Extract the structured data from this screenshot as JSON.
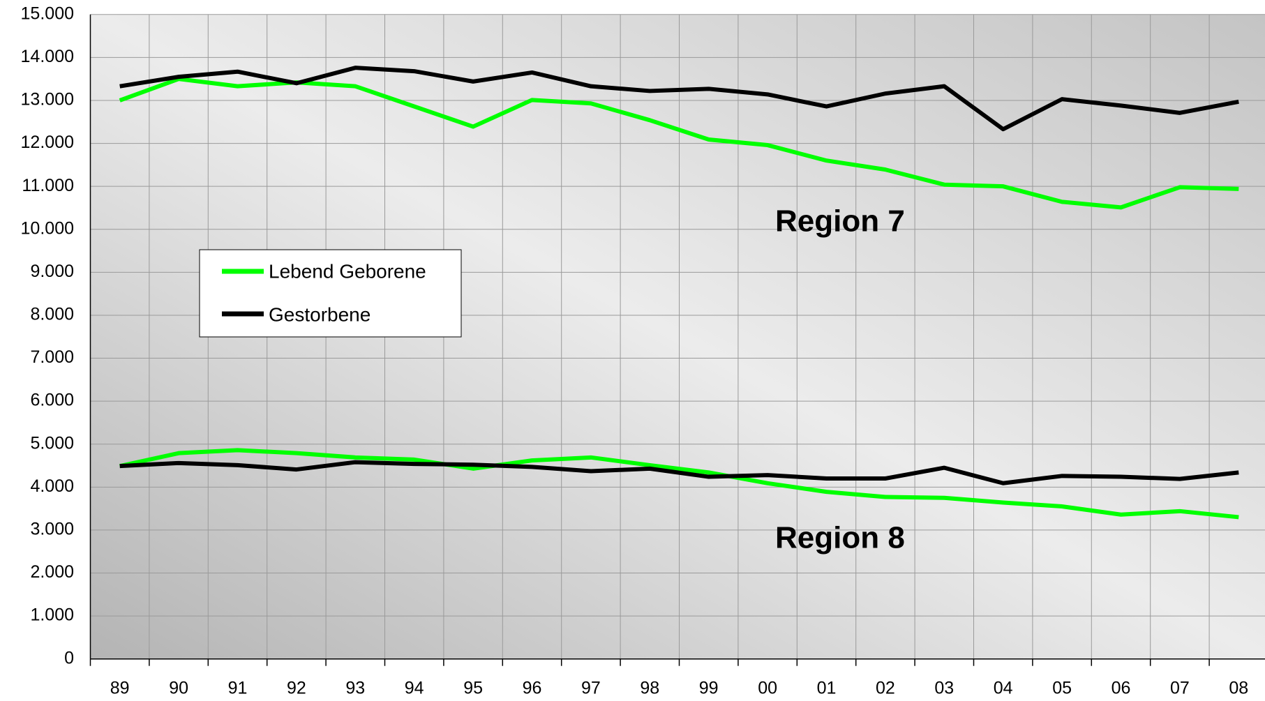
{
  "chart_data": {
    "type": "line",
    "categories": [
      "89",
      "90",
      "91",
      "92",
      "93",
      "94",
      "95",
      "96",
      "97",
      "98",
      "99",
      "00",
      "01",
      "02",
      "03",
      "04",
      "05",
      "06",
      "07",
      "08"
    ],
    "series": [
      {
        "name": "Lebend Geborene",
        "color": "#00ff00",
        "values": [
          13000,
          13500,
          13330,
          13420,
          13330,
          12860,
          12390,
          13010,
          12930,
          12540,
          12090,
          11960,
          11600,
          11390,
          11040,
          11000,
          10640,
          10510,
          10980,
          10940
        ]
      },
      {
        "name": "Gestorbene",
        "color": "#000000",
        "values": [
          13330,
          13550,
          13670,
          13400,
          13760,
          13680,
          13440,
          13650,
          13330,
          13220,
          13270,
          13140,
          12860,
          13160,
          13330,
          12330,
          13030,
          12880,
          12710,
          12970
        ]
      },
      {
        "name": "Lebend Geborene",
        "color": "#00ff00",
        "values": [
          4490,
          4790,
          4860,
          4790,
          4690,
          4640,
          4430,
          4620,
          4690,
          4510,
          4340,
          4090,
          3890,
          3770,
          3750,
          3640,
          3550,
          3360,
          3440,
          3300
        ]
      },
      {
        "name": "Gestorbene",
        "color": "#000000",
        "values": [
          4490,
          4560,
          4510,
          4410,
          4580,
          4540,
          4520,
          4470,
          4370,
          4430,
          4240,
          4280,
          4200,
          4200,
          4450,
          4090,
          4260,
          4240,
          4190,
          4340
        ]
      }
    ],
    "annotations": [
      {
        "text": "Region 7"
      },
      {
        "text": "Region 8"
      }
    ],
    "ylim": [
      0,
      15000
    ],
    "yticks": [
      0,
      {
        "value": 1000,
        "label": "1.000"
      },
      {
        "value": 2000,
        "label": "2.000"
      },
      {
        "value": 3000,
        "label": "3.000"
      },
      {
        "value": 4000,
        "label": "4.000"
      },
      {
        "value": 5000,
        "label": "5.000"
      },
      {
        "value": 6000,
        "label": "6.000"
      },
      {
        "value": 7000,
        "label": "7.000"
      },
      {
        "value": 8000,
        "label": "8.000"
      },
      {
        "value": 9000,
        "label": "9.000"
      },
      {
        "value": 10000,
        "label": "10.000"
      },
      {
        "value": 11000,
        "label": "11.000"
      },
      {
        "value": 12000,
        "label": "12.000"
      },
      {
        "value": 13000,
        "label": "13.000"
      },
      {
        "value": 14000,
        "label": "14.000"
      },
      {
        "value": 15000,
        "label": "15.000"
      }
    ],
    "grid": true
  }
}
